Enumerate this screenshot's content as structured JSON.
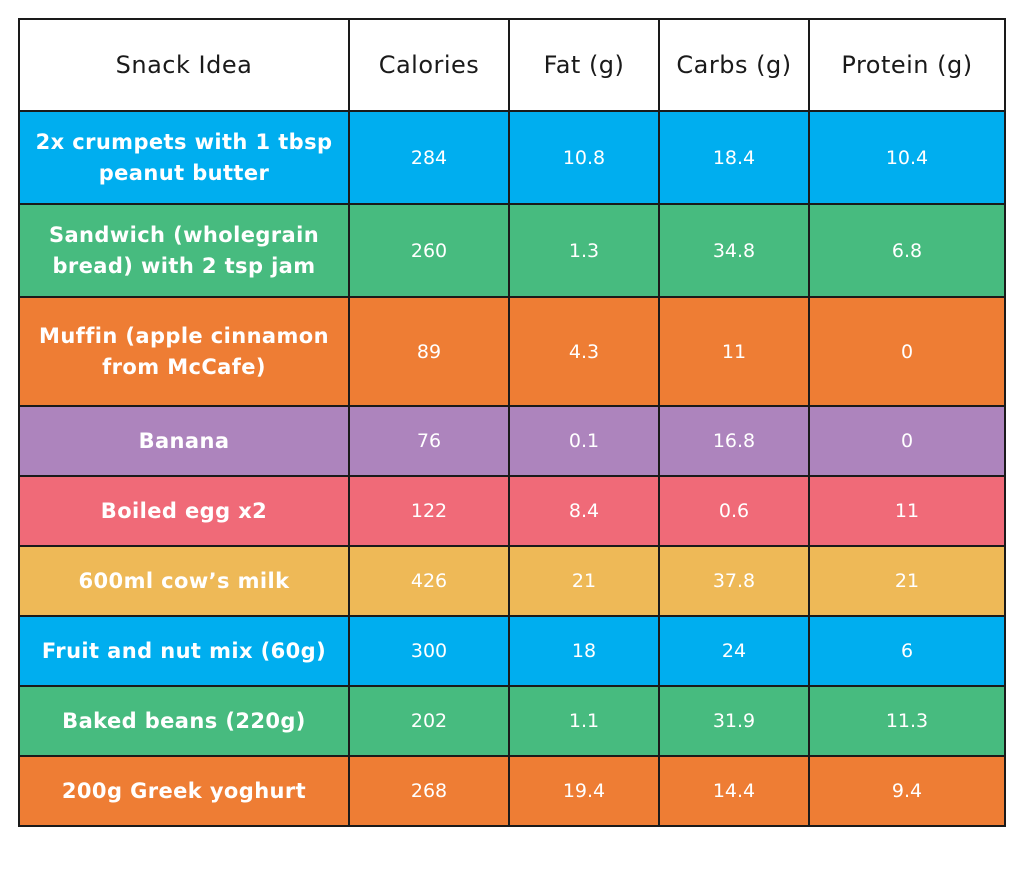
{
  "table": {
    "headers": [
      "Snack Idea",
      "Calories",
      "Fat (g)",
      "Carbs (g)",
      "Protein (g)"
    ],
    "rows": [
      {
        "snack": "2x crumpets with 1 tbsp peanut butter",
        "calories": "284",
        "fat": "10.8",
        "carbs": "18.4",
        "protein": "10.4",
        "color": "#00aeef"
      },
      {
        "snack": "Sandwich (wholegrain bread) with 2 tsp jam",
        "calories": "260",
        "fat": "1.3",
        "carbs": "34.8",
        "protein": "6.8",
        "color": "#47bb7f"
      },
      {
        "snack": "Muffin (apple cinnamon from McCafe)",
        "calories": "89",
        "fat": "4.3",
        "carbs": "11",
        "protein": "0",
        "color": "#ee7d34"
      },
      {
        "snack": "Banana",
        "calories": "76",
        "fat": "0.1",
        "carbs": "16.8",
        "protein": "0",
        "color": "#ad84bd"
      },
      {
        "snack": "Boiled egg x2",
        "calories": "122",
        "fat": "8.4",
        "carbs": "0.6",
        "protein": "11",
        "color": "#f06a78"
      },
      {
        "snack": "600ml cow’s milk",
        "calories": "426",
        "fat": "21",
        "carbs": "37.8",
        "protein": "21",
        "color": "#eeb957"
      },
      {
        "snack": "Fruit and nut mix (60g)",
        "calories": "300",
        "fat": "18",
        "carbs": "24",
        "protein": "6",
        "color": "#00aeef"
      },
      {
        "snack": "Baked beans (220g)",
        "calories": "202",
        "fat": "1.1",
        "carbs": "31.9",
        "protein": "11.3",
        "color": "#47bb7f"
      },
      {
        "snack": "200g Greek yoghurt",
        "calories": "268",
        "fat": "19.4",
        "carbs": "14.4",
        "protein": "9.4",
        "color": "#ee7d34"
      }
    ]
  }
}
